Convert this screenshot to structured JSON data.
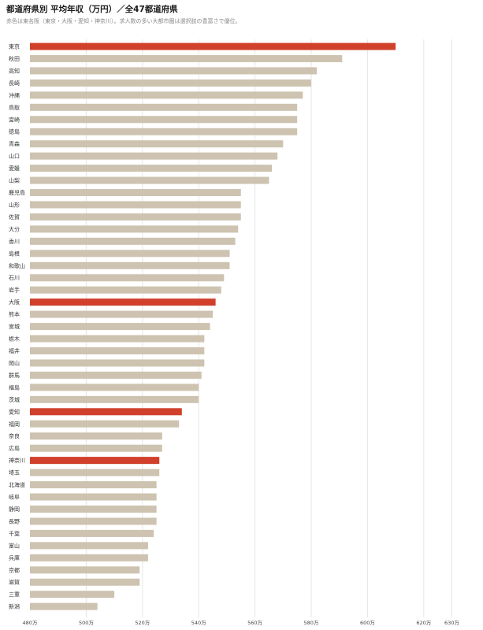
{
  "title": "都道府県別 平均年収（万円）／全47都道府県",
  "subtitle": "赤色は東名阪（東京・大阪・愛知・神奈川）。求人数の多い大都市圏は選択肢の豊富さで優位。",
  "colors": {
    "highlight": "#d0402b",
    "normal": "#cdc3b0",
    "grid": "#e6e6e6"
  },
  "chart_data": {
    "type": "bar",
    "orientation": "horizontal",
    "title": "都道府県別 平均年収（万円）／全47都道府県",
    "subtitle": "赤色は東名阪（東京・大阪・愛知・神奈川）。求人数の多い大都市圏は選択肢の豊富さで優位。",
    "xlabel": "",
    "ylabel": "",
    "xlim": [
      480,
      630
    ],
    "grid": true,
    "ticks": [
      {
        "value": 480,
        "label": "480万"
      },
      {
        "value": 500,
        "label": "500万"
      },
      {
        "value": 520,
        "label": "520万"
      },
      {
        "value": 540,
        "label": "540万"
      },
      {
        "value": 560,
        "label": "560万"
      },
      {
        "value": 580,
        "label": "580万"
      },
      {
        "value": 600,
        "label": "600万"
      },
      {
        "value": 620,
        "label": "620万"
      },
      {
        "value": 630,
        "label": "630万"
      }
    ],
    "categories": [
      "東京",
      "秋田",
      "高知",
      "長崎",
      "沖縄",
      "鳥取",
      "宮崎",
      "徳島",
      "青森",
      "山口",
      "愛媛",
      "山梨",
      "鹿児島",
      "山形",
      "佐賀",
      "大分",
      "香川",
      "島根",
      "和歌山",
      "石川",
      "岩手",
      "大阪",
      "熊本",
      "宮城",
      "栃木",
      "福井",
      "岡山",
      "群馬",
      "福島",
      "茨城",
      "愛知",
      "福岡",
      "奈良",
      "広島",
      "神奈川",
      "埼玉",
      "北海道",
      "岐阜",
      "静岡",
      "長野",
      "千葉",
      "富山",
      "兵庫",
      "京都",
      "滋賀",
      "三重",
      "新潟"
    ],
    "values": [
      610,
      591,
      582,
      580,
      577,
      575,
      575,
      575,
      570,
      568,
      566,
      565,
      555,
      555,
      555,
      554,
      553,
      551,
      551,
      549,
      548,
      546,
      545,
      544,
      542,
      542,
      542,
      541,
      540,
      540,
      534,
      533,
      527,
      527,
      526,
      526,
      525,
      525,
      525,
      525,
      524,
      522,
      522,
      519,
      519,
      510,
      504
    ],
    "highlighted": [
      "東京",
      "大阪",
      "愛知",
      "神奈川"
    ]
  }
}
